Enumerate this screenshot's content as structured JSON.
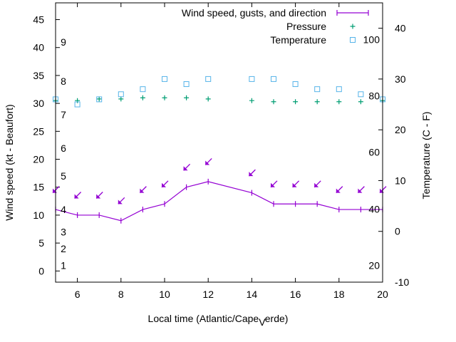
{
  "chart_data": {
    "type": "line",
    "title": "",
    "xlabel": "Local time (Atlantic/Cape_Verde)",
    "xlabel_parts": [
      "Local time (Atlantic/Cape",
      "V",
      "erde)"
    ],
    "ylabel": "Wind speed (kt - Beaufort)",
    "y2label": "Temperature (C - F)",
    "xlim": [
      5,
      20
    ],
    "ylim": [
      -2,
      48
    ],
    "y2lim": [
      -10,
      45
    ],
    "xticks": [
      6,
      8,
      10,
      12,
      14,
      16,
      18,
      20
    ],
    "yticks": [
      0,
      5,
      10,
      15,
      20,
      25,
      30,
      35,
      40,
      45
    ],
    "y2ticks": [
      -10,
      0,
      10,
      20,
      30,
      40
    ],
    "beaufort_labels": [
      {
        "label": "1",
        "y": 1
      },
      {
        "label": "2",
        "y": 4
      },
      {
        "label": "3",
        "y": 7
      },
      {
        "label": "4",
        "y": 11
      },
      {
        "label": "5",
        "y": 17
      },
      {
        "label": "6",
        "y": 22
      },
      {
        "label": "7",
        "y": 28
      },
      {
        "label": "8",
        "y": 34
      },
      {
        "label": "9",
        "y": 41
      }
    ],
    "fahrenheit_labels": [
      {
        "label": "20",
        "y2": -6.7
      },
      {
        "label": "40",
        "y2": 4.4
      },
      {
        "label": "60",
        "y2": 15.6
      },
      {
        "label": "80",
        "y2": 26.7
      },
      {
        "label": "100",
        "y2": 37.8
      }
    ],
    "legend_position": "top-right",
    "series": [
      {
        "name": "Wind speed, gusts, and direction",
        "color": "#9400d3",
        "marker": "line+tick",
        "x": [
          5,
          6,
          7,
          8,
          9,
          10,
          11,
          12,
          14,
          15,
          16,
          17,
          18,
          19,
          20
        ],
        "y": [
          11,
          10,
          10,
          9,
          11,
          12,
          15,
          16,
          14,
          12,
          12,
          12,
          11,
          11,
          11
        ],
        "gusts_y": [
          14.5,
          13.5,
          13.5,
          12.5,
          14.5,
          15.5,
          18.5,
          19.5,
          17.5,
          15.5,
          15.5,
          15.5,
          14.5,
          14.5,
          14.5
        ]
      },
      {
        "name": "Pressure",
        "color": "#009e73",
        "marker": "plus",
        "x": [
          5,
          6,
          7,
          8,
          9,
          10,
          11,
          12,
          14,
          15,
          16,
          17,
          18,
          19,
          20
        ],
        "y": [
          30.5,
          30.5,
          30.8,
          30.8,
          31.0,
          31.0,
          31.0,
          30.8,
          30.5,
          30.3,
          30.3,
          30.3,
          30.3,
          30.3,
          30.5
        ]
      },
      {
        "name": "Temperature",
        "color": "#56b4e9",
        "marker": "square",
        "x": [
          5,
          6,
          7,
          8,
          9,
          10,
          11,
          12,
          14,
          15,
          16,
          17,
          18,
          19,
          20
        ],
        "y2": [
          26,
          25,
          26,
          27,
          28,
          30,
          29,
          30,
          30,
          30,
          29,
          28,
          28,
          27,
          26
        ]
      }
    ]
  }
}
